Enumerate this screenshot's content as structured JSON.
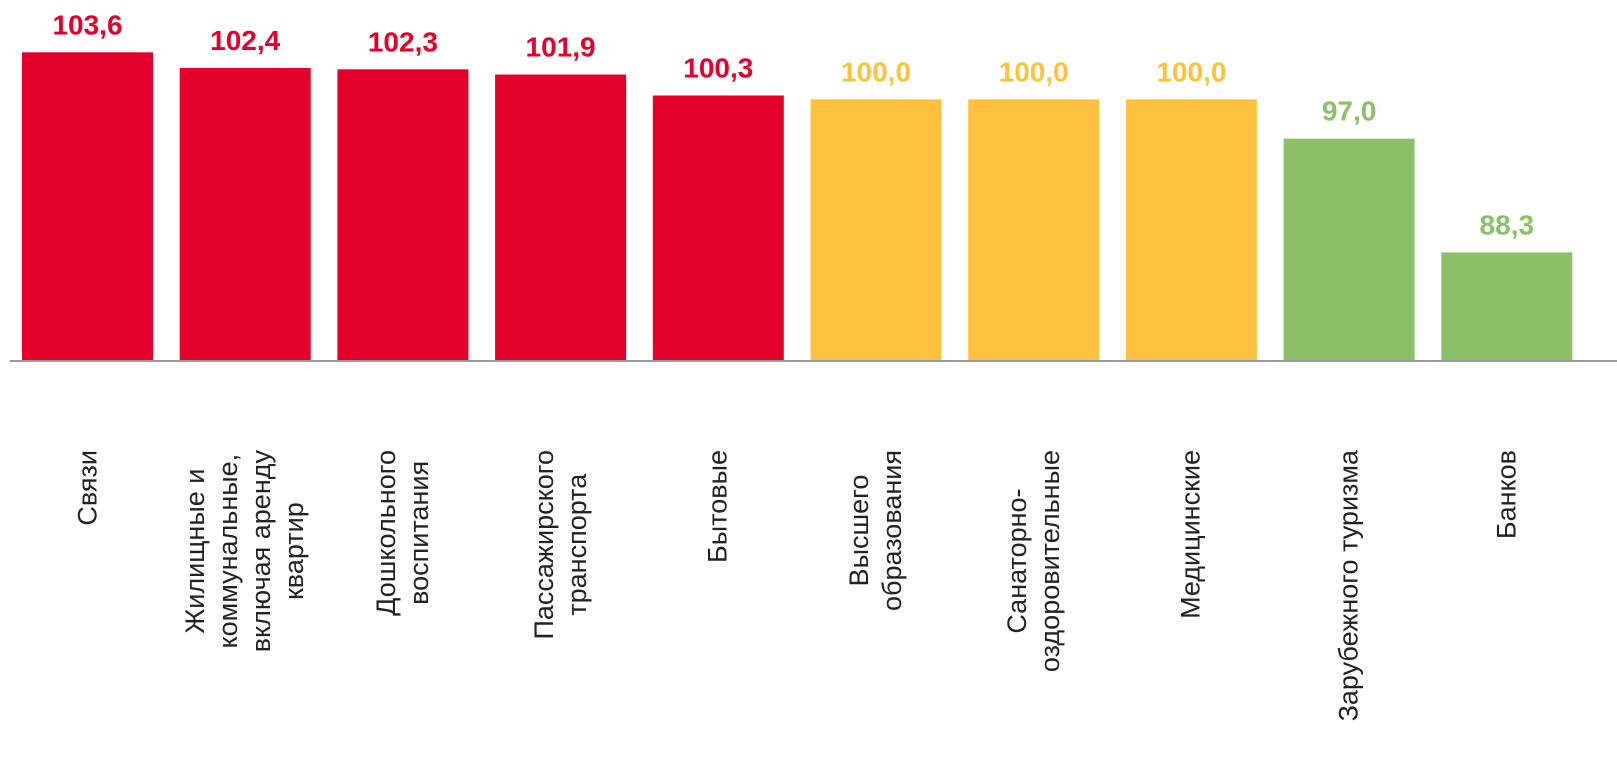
{
  "chart_data": {
    "type": "bar",
    "categories": [
      "Связи",
      "Жилищные и\nкоммунальные,\nвключая аренду\nквартир",
      "Дошкольного\nвоспитания",
      "Пассажирского\nтранспорта",
      "Бытовые",
      "Высшего\nобразования",
      "Санаторно-\nоздоровительные",
      "Медицинские",
      "Зарубежного туризма",
      "Банков"
    ],
    "values": [
      103.6,
      102.4,
      102.3,
      101.9,
      100.3,
      100.0,
      100.0,
      100.0,
      97.0,
      88.3
    ],
    "value_labels": [
      "103,6",
      "102,4",
      "102,3",
      "101,9",
      "100,3",
      "100,0",
      "100,0",
      "100,0",
      "97,0",
      "88,3"
    ],
    "colors": [
      "#e4002b",
      "#e4002b",
      "#e4002b",
      "#e4002b",
      "#e4002b",
      "#fdc13f",
      "#fdc13f",
      "#fdc13f",
      "#8cc068",
      "#8cc068"
    ],
    "ylim": [
      80,
      107.6
    ]
  }
}
